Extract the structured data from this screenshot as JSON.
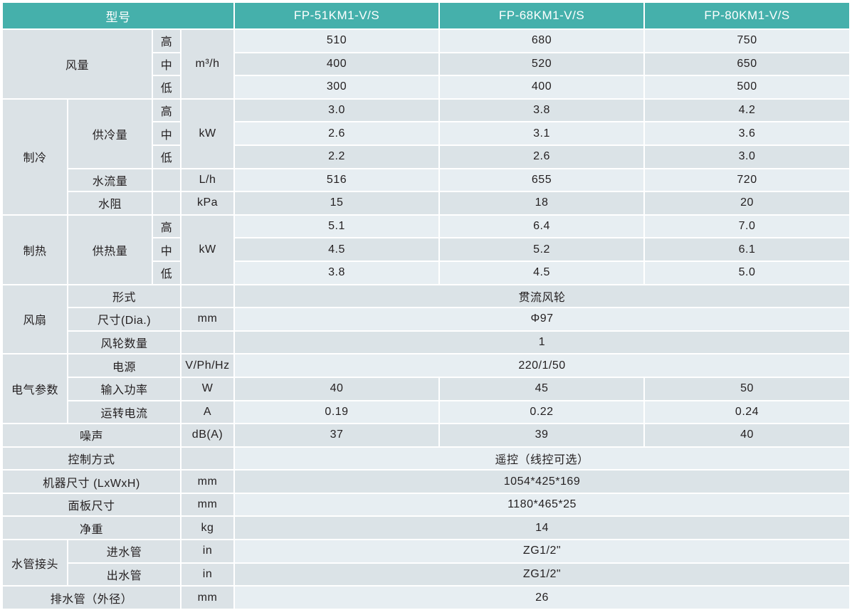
{
  "header": {
    "label": "型号",
    "models": [
      "FP-51KM1-V/S",
      "FP-68KM1-V/S",
      "FP-80KM1-V/S"
    ]
  },
  "airflow": {
    "label": "风量",
    "unit": "m³/h",
    "levels": [
      "高",
      "中",
      "低"
    ],
    "values": [
      [
        "510",
        "680",
        "750"
      ],
      [
        "400",
        "520",
        "650"
      ],
      [
        "300",
        "400",
        "500"
      ]
    ]
  },
  "cooling": {
    "label": "制冷",
    "capacity": {
      "label": "供冷量",
      "unit": "kW",
      "levels": [
        "高",
        "中",
        "低"
      ],
      "values": [
        [
          "3.0",
          "3.8",
          "4.2"
        ],
        [
          "2.6",
          "3.1",
          "3.6"
        ],
        [
          "2.2",
          "2.6",
          "3.0"
        ]
      ]
    },
    "water_flow": {
      "label": "水流量",
      "unit": "L/h",
      "values": [
        "516",
        "655",
        "720"
      ]
    },
    "water_resistance": {
      "label": "水阻",
      "unit": "kPa",
      "values": [
        "15",
        "18",
        "20"
      ]
    }
  },
  "heating": {
    "label": "制热",
    "capacity": {
      "label": "供热量",
      "unit": "kW",
      "levels": [
        "高",
        "中",
        "低"
      ],
      "values": [
        [
          "5.1",
          "6.4",
          "7.0"
        ],
        [
          "4.5",
          "5.2",
          "6.1"
        ],
        [
          "3.8",
          "4.5",
          "5.0"
        ]
      ]
    }
  },
  "fan": {
    "label": "风扇",
    "type": {
      "label": "形式",
      "value": "贯流风轮"
    },
    "size": {
      "label": "尺寸(Dia.)",
      "unit": "mm",
      "value": "Φ97"
    },
    "count": {
      "label": "风轮数量",
      "value": "1"
    }
  },
  "electrical": {
    "label": "电气参数",
    "power_supply": {
      "label": "电源",
      "unit": "V/Ph/Hz",
      "value": "220/1/50"
    },
    "input_power": {
      "label": "输入功率",
      "unit": "W",
      "values": [
        "40",
        "45",
        "50"
      ]
    },
    "current": {
      "label": "运转电流",
      "unit": "A",
      "values": [
        "0.19",
        "0.22",
        "0.24"
      ]
    }
  },
  "noise": {
    "label": "噪声",
    "unit": "dB(A)",
    "values": [
      "37",
      "39",
      "40"
    ]
  },
  "control": {
    "label": "控制方式",
    "value": "遥控（线控可选）"
  },
  "unit_size": {
    "label": "机器尺寸 (LxWxH)",
    "unit": "mm",
    "value": "1054*425*169"
  },
  "panel_size": {
    "label": "面板尺寸",
    "unit": "mm",
    "value": "1180*465*25"
  },
  "net_weight": {
    "label": "净重",
    "unit": "kg",
    "value": "14"
  },
  "pipe": {
    "label": "水管接头",
    "inlet": {
      "label": "进水管",
      "unit": "in",
      "value": "ZG1/2\""
    },
    "outlet": {
      "label": "出水管",
      "unit": "in",
      "value": "ZG1/2\""
    }
  },
  "drain": {
    "label": "排水管（外径）",
    "unit": "mm",
    "value": "26"
  }
}
